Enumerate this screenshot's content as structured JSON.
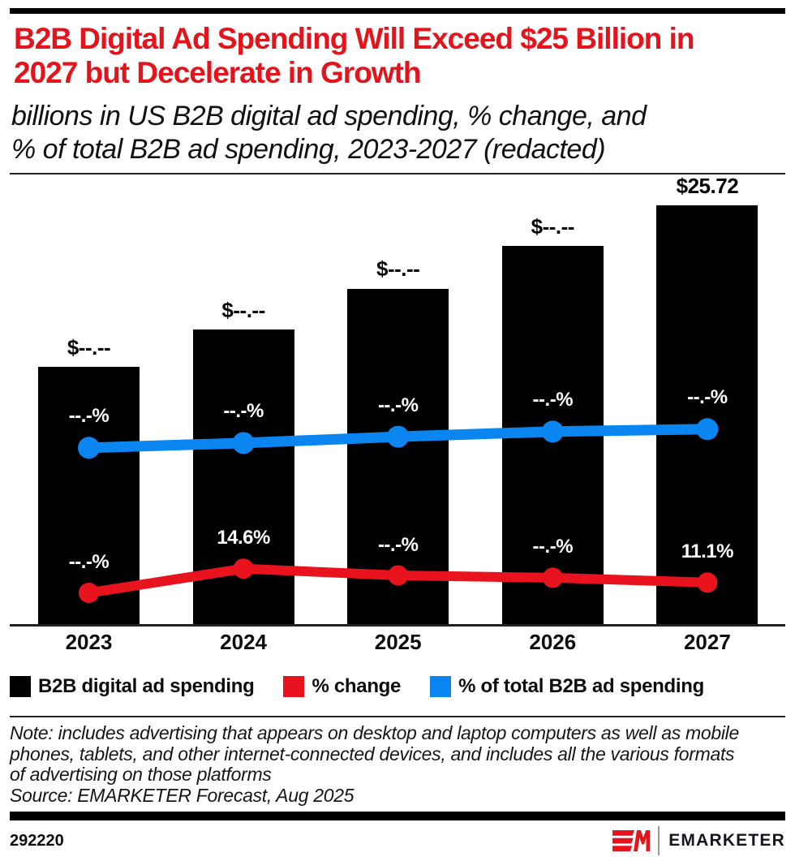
{
  "header": {
    "title": "B2B Digital Ad Spending Will Exceed $25 Billion in\n2027 but Decelerate in Growth",
    "subtitle": "billions in US B2B digital ad spending, % change, and\n% of total B2B ad spending, 2023-2027 (redacted)"
  },
  "chart_data": {
    "type": "bar",
    "title": "B2B Digital Ad Spending Will Exceed $25 Billion in 2027 but Decelerate in Growth",
    "categories": [
      "2023",
      "2024",
      "2025",
      "2026",
      "2027"
    ],
    "series": [
      {
        "name": "B2B digital ad spending",
        "type": "bar",
        "axis": "left",
        "color": "#000000",
        "values": [
          15.8,
          18.1,
          20.6,
          23.2,
          25.72
        ],
        "labels": [
          "$--.--",
          "$--.--",
          "$--.--",
          "$--.--",
          "$25.72"
        ],
        "redacted": [
          true,
          true,
          true,
          true,
          false
        ]
      },
      {
        "name": "% change",
        "type": "line",
        "axis": "right",
        "color": "#e8131d",
        "values": [
          8.5,
          14.6,
          12.9,
          12.3,
          11.1
        ],
        "labels": [
          "--.-%",
          "14.6%",
          "--.-%",
          "--.-%",
          "11.1%"
        ],
        "redacted": [
          true,
          false,
          true,
          true,
          false
        ]
      },
      {
        "name": "% of total B2B ad spending",
        "type": "line",
        "axis": "right",
        "color": "#0b86f0",
        "values": [
          45.1,
          46.3,
          47.9,
          49.2,
          49.8
        ],
        "labels": [
          "--.-%",
          "--.-%",
          "--.-%",
          "--.-%",
          "--.-%"
        ],
        "redacted": [
          true,
          true,
          true,
          true,
          true
        ]
      }
    ],
    "ylim_left": [
      0,
      27
    ],
    "ylim_right": [
      0,
      111
    ],
    "grid": false,
    "legend_position": "bottom",
    "note": "units are billions of US dollars (bars) and percent (lines); redacted values shown as dashes"
  },
  "footnote": {
    "note": "Note: includes advertising that appears on desktop and laptop computers as well as mobile\nphones, tablets, and other internet-connected devices, and includes all the various formats\nof advertising on those platforms",
    "source": "Source: EMARKETER Forecast, Aug 2025"
  },
  "footer": {
    "chart_id": "292220",
    "brand_name": "EMARKETER"
  },
  "colors": {
    "title_red": "#e3141b",
    "line_red": "#e8131d",
    "line_blue": "#0b86f0",
    "bar_black": "#000000"
  }
}
